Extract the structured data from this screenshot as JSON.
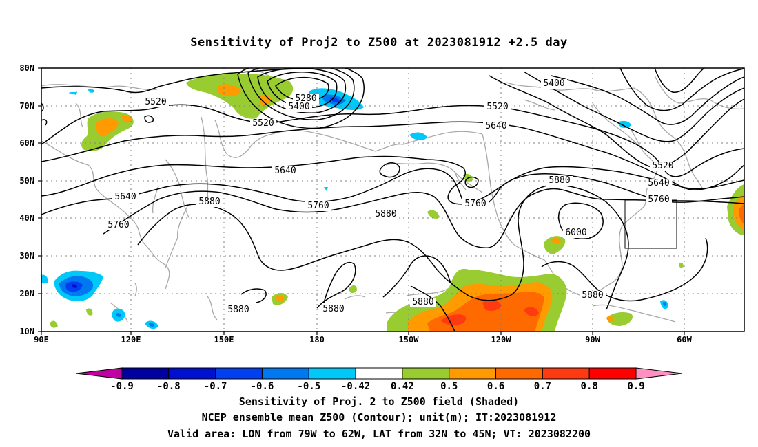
{
  "title": "Sensitivity of Proj2 to Z500 at 2023081912 +2.5 day",
  "lat_labels": [
    "80N",
    "70N",
    "60N",
    "50N",
    "40N",
    "30N",
    "20N",
    "10N"
  ],
  "lon_labels": [
    "90E",
    "120E",
    "150E",
    "180",
    "150W",
    "120W",
    "90W",
    "60W"
  ],
  "contour_labels": [
    {
      "text": "5520"
    },
    {
      "text": "5280"
    },
    {
      "text": "5400"
    },
    {
      "text": "5520"
    },
    {
      "text": "5400"
    },
    {
      "text": "5520"
    },
    {
      "text": "5640"
    },
    {
      "text": "5520"
    },
    {
      "text": "5640"
    },
    {
      "text": "5760"
    },
    {
      "text": "5640"
    },
    {
      "text": "5640"
    },
    {
      "text": "5760"
    },
    {
      "text": "5880"
    },
    {
      "text": "5760"
    },
    {
      "text": "5880"
    },
    {
      "text": "5760"
    },
    {
      "text": "5880"
    },
    {
      "text": "6000"
    },
    {
      "text": "5880"
    },
    {
      "text": "5880"
    },
    {
      "text": "5880"
    },
    {
      "text": "5880"
    }
  ],
  "colorbar": {
    "colors": [
      "#c000a0",
      "#0000a0",
      "#0010d0",
      "#0040f0",
      "#0078f0",
      "#00c8f8",
      "#ffffff",
      "#98cc30",
      "#ff9a00",
      "#ff6a00",
      "#ff3a10",
      "#ff0000",
      "#ff90c0"
    ],
    "labels": [
      "-0.9",
      "-0.8",
      "-0.7",
      "-0.6",
      "-0.5",
      "-0.42",
      "0.42",
      "0.5",
      "0.6",
      "0.7",
      "0.8",
      "0.9"
    ]
  },
  "captions": [
    "Sensitivity of Proj. 2 to Z500 field (Shaded)",
    "NCEP ensemble mean Z500 (Contour); unit(m); IT:2023081912",
    "Valid area: LON from 79W to 62W, LAT from 32N to 45N; VT: 2023082200"
  ]
}
